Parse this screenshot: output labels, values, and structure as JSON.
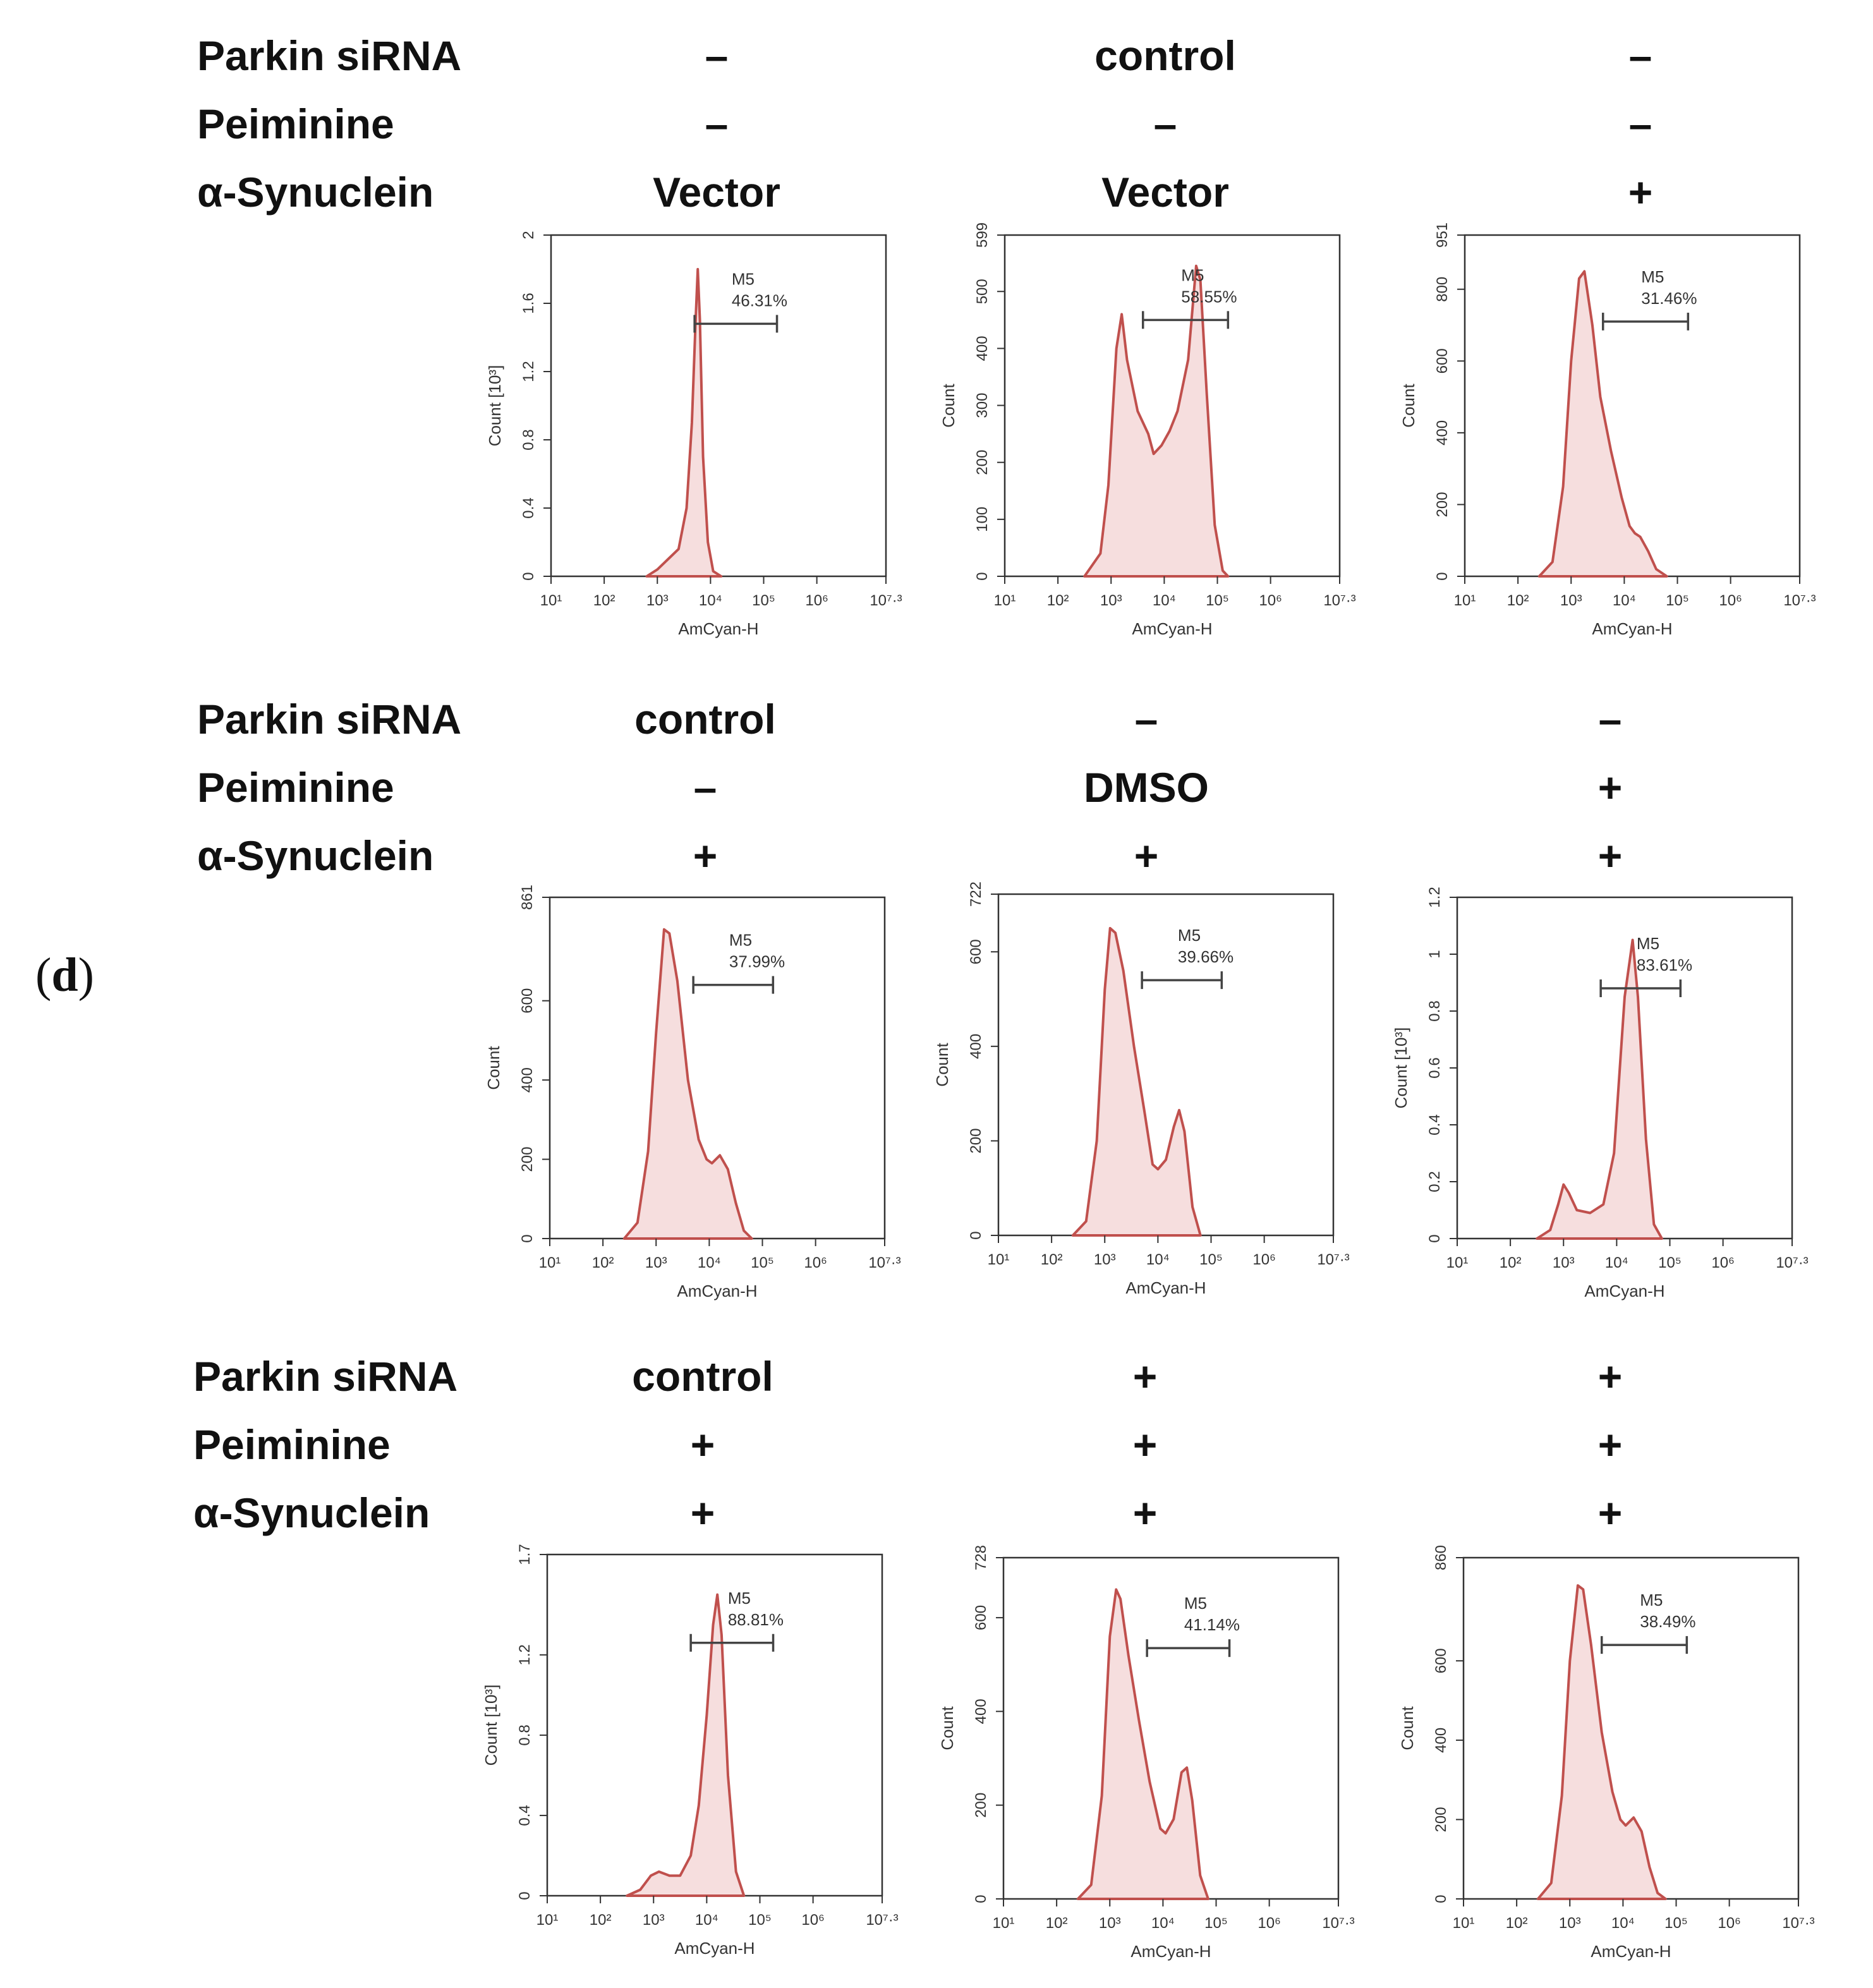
{
  "panel_label": {
    "open": "(",
    "letter": "d",
    "close": ")"
  },
  "row_labels": [
    "Parkin siRNA",
    "Peiminine",
    "α-Synuclein"
  ],
  "rows": [
    {
      "conditions": [
        [
          "–",
          "–",
          "Vector"
        ],
        [
          "control",
          "–",
          "Vector"
        ],
        [
          "–",
          "–",
          "+"
        ]
      ]
    },
    {
      "conditions": [
        [
          "control",
          "–",
          "+"
        ],
        [
          "–",
          "DMSO",
          "+"
        ],
        [
          "–",
          "+",
          "+"
        ]
      ]
    },
    {
      "conditions": [
        [
          "control",
          "+",
          "+"
        ],
        [
          "+",
          "+",
          "+"
        ],
        [
          "+",
          "+",
          "+"
        ]
      ]
    }
  ],
  "colors": {
    "line": "#c0504d",
    "fill": "#f6dede",
    "axis": "#333333",
    "gate": "#444444"
  },
  "chart_data": [
    {
      "type": "area",
      "xlabel": "AmCyan-H",
      "ylabel": "Count [10³]",
      "yticks": [
        "0",
        "0.4",
        "0.8",
        "1.2",
        "1.6",
        "2"
      ],
      "ymax": 2,
      "xticks": [
        "10¹",
        "10²",
        "10³",
        "10⁴",
        "10⁵",
        "10⁶",
        "10⁷·³"
      ],
      "gate": {
        "name": "M5",
        "percent": "46.31%",
        "start_log": 3.7,
        "end_log": 5.25,
        "level": 1.48
      },
      "curve": [
        [
          2.8,
          0
        ],
        [
          3.0,
          0.04
        ],
        [
          3.2,
          0.1
        ],
        [
          3.4,
          0.16
        ],
        [
          3.55,
          0.4
        ],
        [
          3.65,
          0.9
        ],
        [
          3.72,
          1.5
        ],
        [
          3.76,
          1.8
        ],
        [
          3.8,
          1.5
        ],
        [
          3.86,
          0.7
        ],
        [
          3.95,
          0.2
        ],
        [
          4.05,
          0.03
        ],
        [
          4.2,
          0
        ]
      ]
    },
    {
      "type": "area",
      "xlabel": "AmCyan-H",
      "ylabel": "Count",
      "yticks": [
        "0",
        "100",
        "200",
        "300",
        "400",
        "500",
        "599"
      ],
      "ymax": 599,
      "xticks": [
        "10¹",
        "10²",
        "10³",
        "10⁴",
        "10⁵",
        "10⁶",
        "10⁷·³"
      ],
      "gate": {
        "name": "M5",
        "percent": "58.55%",
        "start_log": 3.6,
        "end_log": 5.2,
        "level": 450
      },
      "curve": [
        [
          2.5,
          0
        ],
        [
          2.8,
          40
        ],
        [
          2.95,
          160
        ],
        [
          3.1,
          400
        ],
        [
          3.2,
          460
        ],
        [
          3.3,
          380
        ],
        [
          3.5,
          290
        ],
        [
          3.7,
          250
        ],
        [
          3.8,
          215
        ],
        [
          3.95,
          230
        ],
        [
          4.1,
          255
        ],
        [
          4.25,
          290
        ],
        [
          4.45,
          380
        ],
        [
          4.6,
          545
        ],
        [
          4.68,
          520
        ],
        [
          4.8,
          320
        ],
        [
          4.95,
          90
        ],
        [
          5.1,
          10
        ],
        [
          5.2,
          0
        ]
      ]
    },
    {
      "type": "area",
      "xlabel": "AmCyan-H",
      "ylabel": "Count",
      "yticks": [
        "0",
        "200",
        "400",
        "600",
        "800",
        "951"
      ],
      "ymax": 951,
      "xticks": [
        "10¹",
        "10²",
        "10³",
        "10⁴",
        "10⁵",
        "10⁶",
        "10⁷·³"
      ],
      "gate": {
        "name": "M5",
        "percent": "31.46%",
        "start_log": 3.6,
        "end_log": 5.2,
        "level": 710
      },
      "curve": [
        [
          2.4,
          0
        ],
        [
          2.65,
          40
        ],
        [
          2.85,
          250
        ],
        [
          3.0,
          600
        ],
        [
          3.15,
          830
        ],
        [
          3.25,
          850
        ],
        [
          3.4,
          700
        ],
        [
          3.55,
          500
        ],
        [
          3.75,
          350
        ],
        [
          3.95,
          220
        ],
        [
          4.1,
          140
        ],
        [
          4.2,
          120
        ],
        [
          4.3,
          110
        ],
        [
          4.45,
          70
        ],
        [
          4.6,
          20
        ],
        [
          4.8,
          0
        ]
      ]
    },
    {
      "type": "area",
      "xlabel": "AmCyan-H",
      "ylabel": "Count",
      "yticks": [
        "0",
        "200",
        "400",
        "600",
        "861"
      ],
      "ymax": 861,
      "xticks": [
        "10¹",
        "10²",
        "10³",
        "10⁴",
        "10⁵",
        "10⁶",
        "10⁷·³"
      ],
      "gate": {
        "name": "M5",
        "percent": "37.99%",
        "start_log": 3.7,
        "end_log": 5.2,
        "level": 640
      },
      "curve": [
        [
          2.4,
          0
        ],
        [
          2.65,
          40
        ],
        [
          2.85,
          220
        ],
        [
          3.0,
          520
        ],
        [
          3.15,
          780
        ],
        [
          3.25,
          770
        ],
        [
          3.4,
          650
        ],
        [
          3.6,
          400
        ],
        [
          3.8,
          250
        ],
        [
          3.95,
          200
        ],
        [
          4.05,
          190
        ],
        [
          4.2,
          210
        ],
        [
          4.35,
          175
        ],
        [
          4.5,
          90
        ],
        [
          4.65,
          20
        ],
        [
          4.8,
          0
        ]
      ]
    },
    {
      "type": "area",
      "xlabel": "AmCyan-H",
      "ylabel": "Count",
      "yticks": [
        "0",
        "200",
        "400",
        "600",
        "722"
      ],
      "ymax": 722,
      "xticks": [
        "10¹",
        "10²",
        "10³",
        "10⁴",
        "10⁵",
        "10⁶",
        "10⁷·³"
      ],
      "gate": {
        "name": "M5",
        "percent": "39.66%",
        "start_log": 3.7,
        "end_log": 5.2,
        "level": 540
      },
      "curve": [
        [
          2.4,
          0
        ],
        [
          2.65,
          30
        ],
        [
          2.85,
          200
        ],
        [
          3.0,
          520
        ],
        [
          3.1,
          650
        ],
        [
          3.2,
          640
        ],
        [
          3.35,
          560
        ],
        [
          3.55,
          400
        ],
        [
          3.75,
          260
        ],
        [
          3.9,
          150
        ],
        [
          4.0,
          140
        ],
        [
          4.15,
          160
        ],
        [
          4.3,
          230
        ],
        [
          4.4,
          265
        ],
        [
          4.5,
          220
        ],
        [
          4.65,
          60
        ],
        [
          4.8,
          0
        ]
      ]
    },
    {
      "type": "area",
      "xlabel": "AmCyan-H",
      "ylabel": "Count [10³]",
      "yticks": [
        "0",
        "0.2",
        "0.4",
        "0.6",
        "0.8",
        "1",
        "1.2"
      ],
      "ymax": 1.2,
      "xticks": [
        "10¹",
        "10²",
        "10³",
        "10⁴",
        "10⁵",
        "10⁶",
        "10⁷·³"
      ],
      "gate": {
        "name": "M5",
        "percent": "83.61%",
        "start_log": 3.7,
        "end_log": 5.2,
        "level": 0.88
      },
      "curve": [
        [
          2.5,
          0
        ],
        [
          2.75,
          0.03
        ],
        [
          2.9,
          0.12
        ],
        [
          3.0,
          0.19
        ],
        [
          3.1,
          0.16
        ],
        [
          3.25,
          0.1
        ],
        [
          3.5,
          0.09
        ],
        [
          3.75,
          0.12
        ],
        [
          3.95,
          0.3
        ],
        [
          4.15,
          0.85
        ],
        [
          4.3,
          1.05
        ],
        [
          4.4,
          0.85
        ],
        [
          4.55,
          0.35
        ],
        [
          4.7,
          0.05
        ],
        [
          4.85,
          0
        ]
      ]
    },
    {
      "type": "area",
      "xlabel": "AmCyan-H",
      "ylabel": "Count [10³]",
      "yticks": [
        "0",
        "0.4",
        "0.8",
        "1.2",
        "1.7"
      ],
      "ymax": 1.7,
      "xticks": [
        "10¹",
        "10²",
        "10³",
        "10⁴",
        "10⁵",
        "10⁶",
        "10⁷·³"
      ],
      "gate": {
        "name": "M5",
        "percent": "88.81%",
        "start_log": 3.7,
        "end_log": 5.25,
        "level": 1.26
      },
      "curve": [
        [
          2.5,
          0
        ],
        [
          2.75,
          0.03
        ],
        [
          2.95,
          0.1
        ],
        [
          3.1,
          0.12
        ],
        [
          3.3,
          0.1
        ],
        [
          3.5,
          0.1
        ],
        [
          3.7,
          0.2
        ],
        [
          3.85,
          0.45
        ],
        [
          4.0,
          0.9
        ],
        [
          4.12,
          1.35
        ],
        [
          4.2,
          1.5
        ],
        [
          4.28,
          1.3
        ],
        [
          4.4,
          0.6
        ],
        [
          4.55,
          0.12
        ],
        [
          4.7,
          0
        ]
      ]
    },
    {
      "type": "area",
      "xlabel": "AmCyan-H",
      "ylabel": "Count",
      "yticks": [
        "0",
        "200",
        "400",
        "600",
        "728"
      ],
      "ymax": 728,
      "xticks": [
        "10¹",
        "10²",
        "10³",
        "10⁴",
        "10⁵",
        "10⁶",
        "10⁷·³"
      ],
      "gate": {
        "name": "M5",
        "percent": "41.14%",
        "start_log": 3.7,
        "end_log": 5.25,
        "level": 535
      },
      "curve": [
        [
          2.4,
          0
        ],
        [
          2.65,
          30
        ],
        [
          2.85,
          220
        ],
        [
          3.0,
          560
        ],
        [
          3.12,
          660
        ],
        [
          3.2,
          640
        ],
        [
          3.35,
          520
        ],
        [
          3.55,
          380
        ],
        [
          3.75,
          250
        ],
        [
          3.95,
          150
        ],
        [
          4.05,
          140
        ],
        [
          4.2,
          170
        ],
        [
          4.35,
          270
        ],
        [
          4.45,
          280
        ],
        [
          4.55,
          210
        ],
        [
          4.7,
          50
        ],
        [
          4.85,
          0
        ]
      ]
    },
    {
      "type": "area",
      "xlabel": "AmCyan-H",
      "ylabel": "Count",
      "yticks": [
        "0",
        "200",
        "400",
        "600",
        "860"
      ],
      "ymax": 860,
      "xticks": [
        "10¹",
        "10²",
        "10³",
        "10⁴",
        "10⁵",
        "10⁶",
        "10⁷·³"
      ],
      "gate": {
        "name": "M5",
        "percent": "38.49%",
        "start_log": 3.6,
        "end_log": 5.2,
        "level": 640
      },
      "curve": [
        [
          2.4,
          0
        ],
        [
          2.65,
          40
        ],
        [
          2.85,
          260
        ],
        [
          3.0,
          600
        ],
        [
          3.15,
          790
        ],
        [
          3.25,
          780
        ],
        [
          3.4,
          640
        ],
        [
          3.6,
          420
        ],
        [
          3.8,
          270
        ],
        [
          3.95,
          200
        ],
        [
          4.05,
          185
        ],
        [
          4.2,
          205
        ],
        [
          4.35,
          170
        ],
        [
          4.5,
          80
        ],
        [
          4.65,
          15
        ],
        [
          4.8,
          0
        ]
      ]
    }
  ]
}
